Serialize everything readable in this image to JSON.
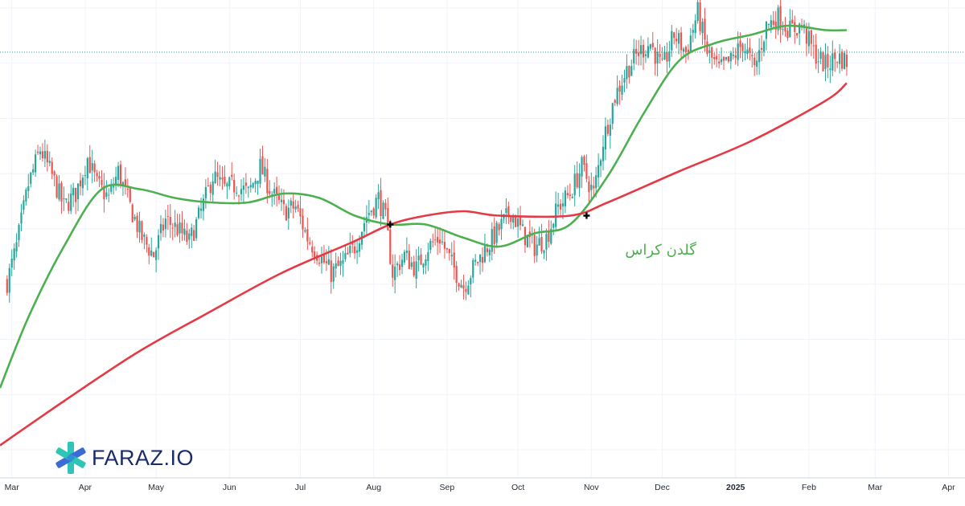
{
  "brand": {
    "logo_text": "FARAZ.IO",
    "colors": {
      "navy": "#1a2b6b",
      "teal": "#2ec4b6",
      "blue": "#3b6bd6"
    }
  },
  "chart_data": {
    "type": "candlestick",
    "title": "",
    "xlabel": "",
    "ylabel": "",
    "grid": true,
    "x_ticks": [
      {
        "label": "Mar",
        "date": "2024-03-01"
      },
      {
        "label": "Apr",
        "date": "2024-04-01"
      },
      {
        "label": "May",
        "date": "2024-05-01"
      },
      {
        "label": "Jun",
        "date": "2024-06-01"
      },
      {
        "label": "Jul",
        "date": "2024-07-01"
      },
      {
        "label": "Aug",
        "date": "2024-08-01"
      },
      {
        "label": "Sep",
        "date": "2024-09-01"
      },
      {
        "label": "Oct",
        "date": "2024-10-01"
      },
      {
        "label": "Nov",
        "date": "2024-11-01"
      },
      {
        "label": "Dec",
        "date": "2024-12-01"
      },
      {
        "label": "2025",
        "date": "2025-01-01",
        "bold": true
      },
      {
        "label": "Feb",
        "date": "2025-02-01"
      },
      {
        "label": "Mar",
        "date": "2025-03-01"
      },
      {
        "label": "Apr",
        "date": "2025-04-01"
      }
    ],
    "x_range": [
      "2024-02-25",
      "2025-04-08"
    ],
    "price_range": [
      0,
      100
    ],
    "current_price": 90,
    "price_series": [
      [
        "2024-02-28",
        38
      ],
      [
        "2024-03-03",
        46
      ],
      [
        "2024-03-08",
        60
      ],
      [
        "2024-03-13",
        68
      ],
      [
        "2024-03-18",
        62
      ],
      [
        "2024-03-23",
        55
      ],
      [
        "2024-03-28",
        58
      ],
      [
        "2024-04-02",
        66
      ],
      [
        "2024-04-06",
        60
      ],
      [
        "2024-04-11",
        57
      ],
      [
        "2024-04-15",
        63
      ],
      [
        "2024-04-20",
        55
      ],
      [
        "2024-04-25",
        48
      ],
      [
        "2024-04-30",
        44
      ],
      [
        "2024-05-05",
        52
      ],
      [
        "2024-05-10",
        50
      ],
      [
        "2024-05-15",
        47
      ],
      [
        "2024-05-20",
        54
      ],
      [
        "2024-05-25",
        62
      ],
      [
        "2024-05-30",
        59
      ],
      [
        "2024-06-04",
        60
      ],
      [
        "2024-06-09",
        58
      ],
      [
        "2024-06-14",
        64
      ],
      [
        "2024-06-19",
        58
      ],
      [
        "2024-06-24",
        54
      ],
      [
        "2024-06-29",
        55
      ],
      [
        "2024-07-04",
        48
      ],
      [
        "2024-07-09",
        44
      ],
      [
        "2024-07-14",
        40
      ],
      [
        "2024-07-19",
        42
      ],
      [
        "2024-07-24",
        46
      ],
      [
        "2024-07-29",
        53
      ],
      [
        "2024-08-03",
        57
      ],
      [
        "2024-08-06",
        52
      ],
      [
        "2024-08-09",
        40
      ],
      [
        "2024-08-14",
        44
      ],
      [
        "2024-08-19",
        41
      ],
      [
        "2024-08-24",
        46
      ],
      [
        "2024-08-29",
        48
      ],
      [
        "2024-09-03",
        42
      ],
      [
        "2024-09-08",
        37
      ],
      [
        "2024-09-13",
        42
      ],
      [
        "2024-09-18",
        46
      ],
      [
        "2024-09-23",
        50
      ],
      [
        "2024-09-28",
        54
      ],
      [
        "2024-10-03",
        49
      ],
      [
        "2024-10-08",
        46
      ],
      [
        "2024-10-13",
        48
      ],
      [
        "2024-10-18",
        55
      ],
      [
        "2024-10-23",
        58
      ],
      [
        "2024-10-28",
        64
      ],
      [
        "2024-11-02",
        58
      ],
      [
        "2024-11-06",
        70
      ],
      [
        "2024-11-11",
        80
      ],
      [
        "2024-11-16",
        86
      ],
      [
        "2024-11-21",
        90
      ],
      [
        "2024-11-26",
        92
      ],
      [
        "2024-12-01",
        86
      ],
      [
        "2024-12-06",
        94
      ],
      [
        "2024-12-11",
        90
      ],
      [
        "2024-12-16",
        99
      ],
      [
        "2024-12-20",
        90
      ],
      [
        "2024-12-25",
        86
      ],
      [
        "2024-12-30",
        88
      ],
      [
        "2025-01-04",
        92
      ],
      [
        "2025-01-09",
        86
      ],
      [
        "2025-01-14",
        96
      ],
      [
        "2025-01-19",
        98
      ],
      [
        "2025-01-24",
        95
      ],
      [
        "2025-01-29",
        96
      ],
      [
        "2025-02-03",
        90
      ],
      [
        "2025-02-08",
        87
      ],
      [
        "2025-02-13",
        89
      ],
      [
        "2025-02-17",
        88
      ]
    ],
    "series": [
      {
        "color": "#4caf50",
        "values": [
          [
            "2024-02-25",
            14
          ],
          [
            "2024-03-08",
            30
          ],
          [
            "2024-03-23",
            46
          ],
          [
            "2024-04-08",
            59
          ],
          [
            "2024-04-24",
            59
          ],
          [
            "2024-05-09",
            57
          ],
          [
            "2024-05-24",
            56
          ],
          [
            "2024-06-09",
            56
          ],
          [
            "2024-06-24",
            58
          ],
          [
            "2024-07-09",
            57
          ],
          [
            "2024-07-24",
            53
          ],
          [
            "2024-08-08",
            51
          ],
          [
            "2024-08-23",
            51
          ],
          [
            "2024-09-08",
            48
          ],
          [
            "2024-09-23",
            46
          ],
          [
            "2024-10-08",
            49
          ],
          [
            "2024-10-23",
            51
          ],
          [
            "2024-11-08",
            62
          ],
          [
            "2024-11-23",
            76
          ],
          [
            "2024-12-08",
            88
          ],
          [
            "2024-12-23",
            92
          ],
          [
            "2025-01-08",
            94
          ],
          [
            "2025-01-23",
            96
          ],
          [
            "2025-02-08",
            95
          ],
          [
            "2025-02-17",
            95
          ]
        ]
      },
      {
        "color": "#e53945",
        "values": [
          [
            "2024-02-25",
            1
          ],
          [
            "2024-03-23",
            11
          ],
          [
            "2024-04-23",
            22
          ],
          [
            "2024-05-23",
            31
          ],
          [
            "2024-06-23",
            40
          ],
          [
            "2024-07-23",
            47
          ],
          [
            "2024-08-08",
            51
          ],
          [
            "2024-08-23",
            53
          ],
          [
            "2024-09-08",
            54
          ],
          [
            "2024-09-23",
            53
          ],
          [
            "2024-10-23",
            53
          ],
          [
            "2024-11-08",
            56
          ],
          [
            "2024-12-08",
            63
          ],
          [
            "2025-01-08",
            70
          ],
          [
            "2025-02-08",
            79
          ],
          [
            "2025-02-17",
            83
          ]
        ]
      }
    ],
    "markers": [
      {
        "date": "2024-08-08",
        "value": 51
      },
      {
        "date": "2024-10-30",
        "value": 53
      }
    ],
    "annotations": [
      {
        "text": "گلدن کراس",
        "date": "2024-10-30",
        "value": 46,
        "color": "#4caf50"
      }
    ]
  }
}
